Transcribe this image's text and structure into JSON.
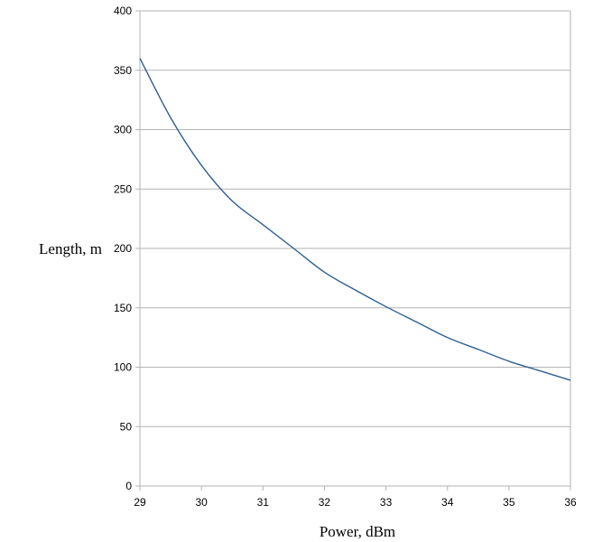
{
  "chart_data": {
    "type": "line",
    "title": "",
    "xlabel": "Power, dBm",
    "ylabel": "Length, m",
    "xlim": [
      29,
      36
    ],
    "ylim": [
      0,
      400
    ],
    "x_ticks": [
      29,
      30,
      31,
      32,
      33,
      34,
      35,
      36
    ],
    "y_ticks": [
      0,
      50,
      100,
      150,
      200,
      250,
      300,
      350,
      400
    ],
    "grid": {
      "horizontal": true,
      "vertical": false
    },
    "legend": "none",
    "series": [
      {
        "color": "#2f5f8f",
        "x": [
          29,
          29.5,
          30,
          30.5,
          31,
          31.5,
          32,
          32.5,
          33,
          33.5,
          34,
          34.5,
          35,
          35.5,
          36
        ],
        "y": [
          360,
          310,
          270,
          240,
          220,
          200,
          180,
          165,
          151,
          138,
          125,
          115,
          105,
          97,
          89
        ]
      }
    ]
  }
}
